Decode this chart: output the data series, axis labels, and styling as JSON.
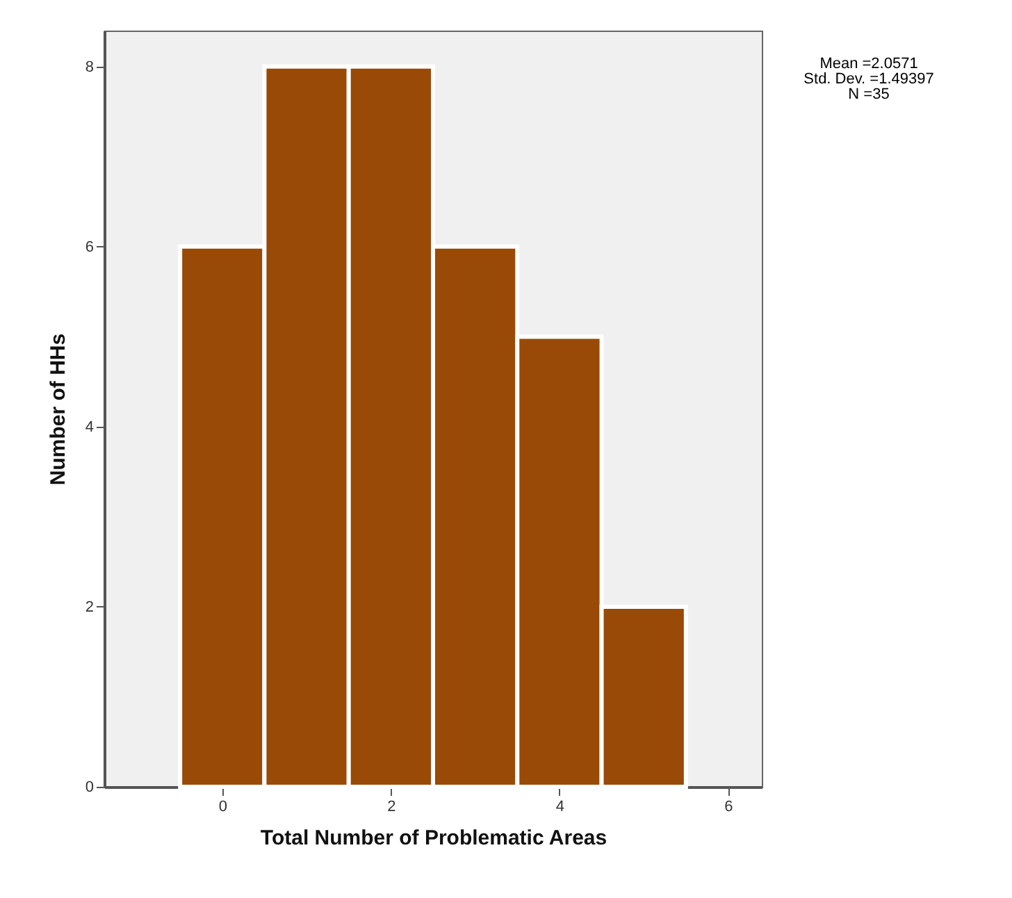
{
  "chart_data": {
    "type": "histogram",
    "xlabel": "Total Number of Problematic Areas",
    "ylabel": "Number of HHs",
    "bins": [
      -0.5,
      0.5,
      1.5,
      2.5,
      3.5,
      4.5,
      5.5
    ],
    "values": [
      6,
      8,
      8,
      6,
      5,
      2
    ],
    "color": "#994a07",
    "xlim": [
      -1.4,
      6.4
    ],
    "xticks": [
      0,
      2,
      4,
      6
    ],
    "ylim": [
      0,
      8.4
    ],
    "yticks": [
      0,
      2,
      4,
      6,
      8
    ],
    "grid": false,
    "annotations": [
      "Mean =2.0571",
      "Std. Dev. =1.49397",
      "N =35"
    ]
  }
}
